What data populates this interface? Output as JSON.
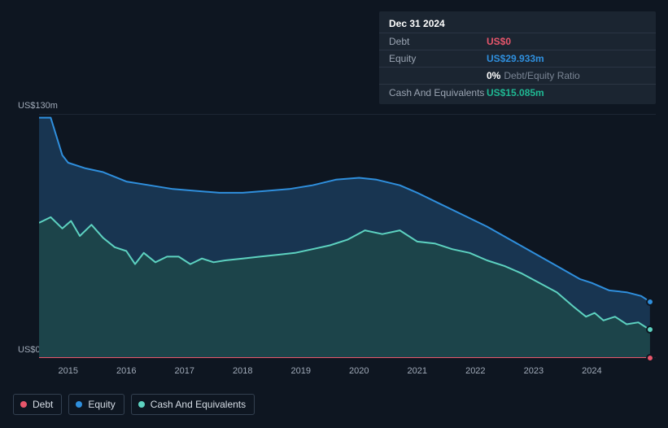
{
  "tooltip": {
    "date": "Dec 31 2024",
    "rows": [
      {
        "label": "Debt",
        "value": "US$0",
        "cls": "debt"
      },
      {
        "label": "Equity",
        "value": "US$29.933m",
        "cls": "equity"
      },
      {
        "label": "",
        "pct": "0%",
        "text": "Debt/Equity Ratio",
        "cls": "ratio"
      },
      {
        "label": "Cash And Equivalents",
        "value": "US$15.085m",
        "cls": "cash"
      }
    ]
  },
  "chart": {
    "type": "area",
    "background": "#0e1621",
    "y_axis": {
      "min": 0,
      "max": 130,
      "top_label": "US$130m",
      "bottom_label": "US$0",
      "label_fontsize": 11,
      "label_color": "#a0aab8"
    },
    "x_axis": {
      "domain_min": 2014.5,
      "domain_max": 2025.1,
      "ticks": [
        2015,
        2016,
        2017,
        2018,
        2019,
        2020,
        2021,
        2022,
        2023,
        2024
      ],
      "tick_labels": [
        "2015",
        "2016",
        "2017",
        "2018",
        "2019",
        "2020",
        "2021",
        "2022",
        "2023",
        "2024"
      ],
      "label_fontsize": 11,
      "label_color": "#a0aab8"
    },
    "series": [
      {
        "name": "Equity",
        "color": "#2f8fdd",
        "fill": "#1a3b59",
        "fill_opacity": 0.85,
        "line_width": 2,
        "data": [
          [
            2014.5,
            128
          ],
          [
            2014.7,
            128
          ],
          [
            2014.9,
            108
          ],
          [
            2015.0,
            104
          ],
          [
            2015.3,
            101
          ],
          [
            2015.6,
            99
          ],
          [
            2016.0,
            94
          ],
          [
            2016.4,
            92
          ],
          [
            2016.8,
            90
          ],
          [
            2017.2,
            89
          ],
          [
            2017.6,
            88
          ],
          [
            2018.0,
            88
          ],
          [
            2018.4,
            89
          ],
          [
            2018.8,
            90
          ],
          [
            2019.2,
            92
          ],
          [
            2019.6,
            95
          ],
          [
            2020.0,
            96
          ],
          [
            2020.3,
            95
          ],
          [
            2020.7,
            92
          ],
          [
            2021.0,
            88
          ],
          [
            2021.4,
            82
          ],
          [
            2021.8,
            76
          ],
          [
            2022.2,
            70
          ],
          [
            2022.6,
            63
          ],
          [
            2023.0,
            56
          ],
          [
            2023.4,
            49
          ],
          [
            2023.8,
            42
          ],
          [
            2024.0,
            40
          ],
          [
            2024.3,
            36
          ],
          [
            2024.6,
            35
          ],
          [
            2024.85,
            33
          ],
          [
            2025.0,
            30
          ]
        ]
      },
      {
        "name": "Cash And Equivalents",
        "color": "#5dd2c0",
        "fill": "#1e4a48",
        "fill_opacity": 0.75,
        "line_width": 2,
        "data": [
          [
            2014.5,
            72
          ],
          [
            2014.7,
            75
          ],
          [
            2014.9,
            69
          ],
          [
            2015.05,
            73
          ],
          [
            2015.2,
            65
          ],
          [
            2015.4,
            71
          ],
          [
            2015.6,
            64
          ],
          [
            2015.8,
            59
          ],
          [
            2016.0,
            57
          ],
          [
            2016.15,
            50
          ],
          [
            2016.3,
            56
          ],
          [
            2016.5,
            51
          ],
          [
            2016.7,
            54
          ],
          [
            2016.9,
            54
          ],
          [
            2017.1,
            50
          ],
          [
            2017.3,
            53
          ],
          [
            2017.5,
            51
          ],
          [
            2017.7,
            52
          ],
          [
            2018.0,
            53
          ],
          [
            2018.3,
            54
          ],
          [
            2018.6,
            55
          ],
          [
            2018.9,
            56
          ],
          [
            2019.2,
            58
          ],
          [
            2019.5,
            60
          ],
          [
            2019.8,
            63
          ],
          [
            2020.1,
            68
          ],
          [
            2020.4,
            66
          ],
          [
            2020.7,
            68
          ],
          [
            2021.0,
            62
          ],
          [
            2021.3,
            61
          ],
          [
            2021.6,
            58
          ],
          [
            2021.9,
            56
          ],
          [
            2022.2,
            52
          ],
          [
            2022.5,
            49
          ],
          [
            2022.8,
            45
          ],
          [
            2023.1,
            40
          ],
          [
            2023.4,
            35
          ],
          [
            2023.7,
            27
          ],
          [
            2023.9,
            22
          ],
          [
            2024.05,
            24
          ],
          [
            2024.2,
            20
          ],
          [
            2024.4,
            22
          ],
          [
            2024.6,
            18
          ],
          [
            2024.8,
            19
          ],
          [
            2025.0,
            15
          ]
        ]
      },
      {
        "name": "Debt",
        "color": "#e8566b",
        "fill": "none",
        "line_width": 2,
        "data": [
          [
            2014.5,
            0
          ],
          [
            2025.0,
            0
          ]
        ]
      }
    ],
    "end_markers": [
      {
        "x": 2025.0,
        "y": 30,
        "color": "#2f8fdd"
      },
      {
        "x": 2025.0,
        "y": 15,
        "color": "#5dd2c0"
      },
      {
        "x": 2025.0,
        "y": 0,
        "color": "#e8566b"
      }
    ]
  },
  "legend": {
    "items": [
      {
        "label": "Debt",
        "color": "#e8566b"
      },
      {
        "label": "Equity",
        "color": "#2f8fdd"
      },
      {
        "label": "Cash And Equivalents",
        "color": "#5dd2c0"
      }
    ],
    "border_color": "#334050",
    "fontsize": 12,
    "text_color": "#d6dde6"
  }
}
